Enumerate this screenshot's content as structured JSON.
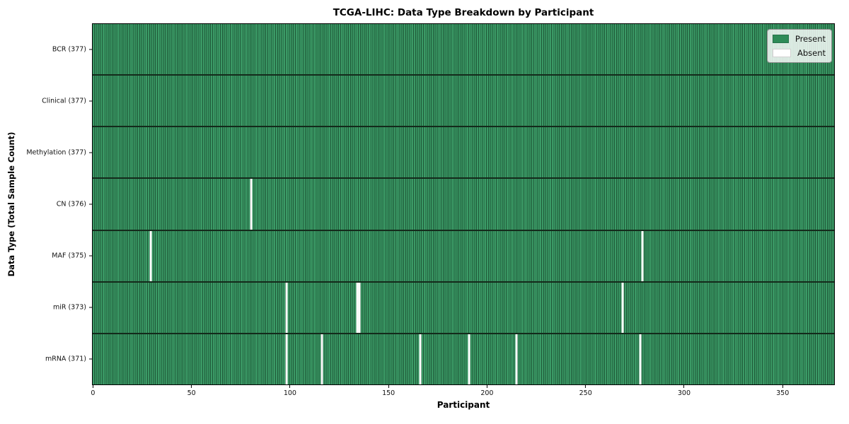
{
  "figure": {
    "title": "TCGA-LIHC: Data Type Breakdown by Participant",
    "xlabel": "Participant",
    "ylabel": "Data Type (Total Sample Count)"
  },
  "legend": {
    "present_label": "Present",
    "absent_label": "Absent"
  },
  "colors": {
    "cell_fill": "#3b9a66",
    "cell_edge": "#1e5737",
    "present": "#2e8b57",
    "absent": "#ffffff",
    "row_separator": "#142a1b",
    "plot_border": "#000000",
    "legend_bg": "rgba(255,255,255,0.82)"
  },
  "chart_data": {
    "type": "heatmap",
    "title": "TCGA-LIHC: Data Type Breakdown by Participant",
    "xlabel": "Participant",
    "ylabel": "Data Type (Total Sample Count)",
    "legend": [
      "Present",
      "Absent"
    ],
    "legend_position": "upper right",
    "grid": "cell-edges",
    "n_participants": 377,
    "xlim": [
      -0.5,
      376.5
    ],
    "x_ticks": [
      0,
      50,
      100,
      150,
      200,
      250,
      300,
      350
    ],
    "rows": [
      {
        "name": "BCR",
        "total": 377,
        "label": "BCR (377)",
        "absent_participants": []
      },
      {
        "name": "Clinical",
        "total": 377,
        "label": "Clinical (377)",
        "absent_participants": []
      },
      {
        "name": "Methylation",
        "total": 377,
        "label": "Methylation (377)",
        "absent_participants": []
      },
      {
        "name": "CN",
        "total": 376,
        "label": "CN (376)",
        "absent_participants": [
          80
        ]
      },
      {
        "name": "MAF",
        "total": 375,
        "label": "MAF (375)",
        "absent_participants": [
          29,
          279
        ]
      },
      {
        "name": "miR",
        "total": 373,
        "label": "miR (373)",
        "absent_participants": [
          98,
          134,
          135,
          269
        ]
      },
      {
        "name": "mRNA",
        "total": 371,
        "label": "mRNA (371)",
        "absent_participants": [
          98,
          116,
          166,
          191,
          215,
          278
        ]
      }
    ]
  }
}
